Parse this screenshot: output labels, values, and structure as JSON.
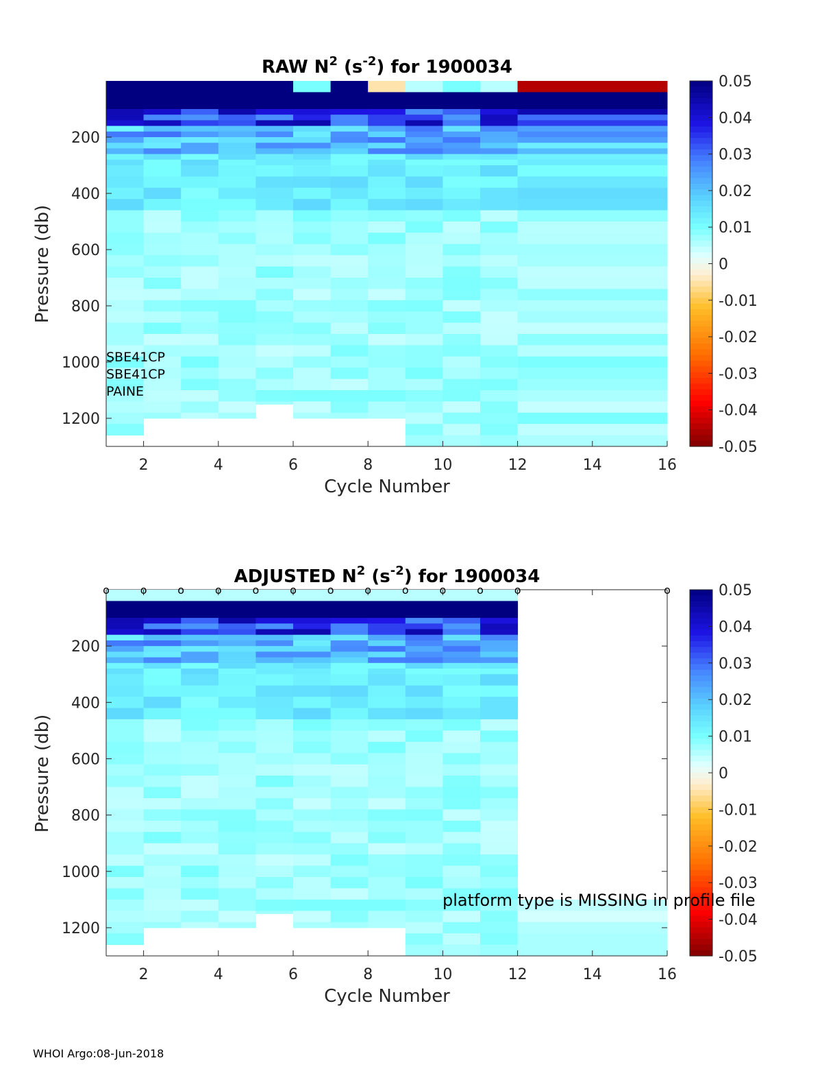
{
  "footer": "WHOI Argo:08-Jun-2018",
  "chart_data": [
    {
      "type": "heatmap",
      "title_main": "RAW N",
      "title_sup1": "2",
      "title_mid": " (s",
      "title_sup2": "-2",
      "title_end": ") for 1900034",
      "xlabel": "Cycle Number",
      "ylabel": "Pressure (db)",
      "xlim": [
        1,
        16
      ],
      "ylim": [
        1300,
        0
      ],
      "xticks": [
        "2",
        "4",
        "6",
        "8",
        "10",
        "12",
        "14",
        "16"
      ],
      "yticks": [
        "200",
        "400",
        "600",
        "800",
        "1000",
        "1200"
      ],
      "colorbar": {
        "range": [
          -0.05,
          0.05
        ],
        "ticks": [
          "0.05",
          "0.04",
          "0.03",
          "0.02",
          "0.01",
          "0",
          "-0.01",
          "-0.02",
          "-0.03",
          "-0.04",
          "-0.05"
        ]
      },
      "annotations": [
        "SBE41CP",
        "SBE41CP",
        "PAINE"
      ],
      "cycles": [
        1,
        2,
        3,
        4,
        5,
        6,
        7,
        8,
        9,
        10,
        11,
        12
      ],
      "max_pressure": [
        1260,
        1200,
        1200,
        1200,
        1150,
        1200,
        1200,
        1200,
        1300,
        1300,
        1300,
        1300
      ],
      "surface_value_by_cycle": [
        0.05,
        0.05,
        0.05,
        0.05,
        0.05,
        0.01,
        0.05,
        -0.005,
        0.005,
        0.01,
        0.005,
        -0.045
      ]
    },
    {
      "type": "heatmap",
      "title_main": "ADJUSTED N",
      "title_sup1": "2",
      "title_mid": " (s",
      "title_sup2": "-2",
      "title_end": ") for 1900034",
      "xlabel": "Cycle Number",
      "ylabel": "Pressure (db)",
      "xlim": [
        1,
        16
      ],
      "ylim": [
        1300,
        0
      ],
      "xticks": [
        "2",
        "4",
        "6",
        "8",
        "10",
        "12",
        "14",
        "16"
      ],
      "yticks": [
        "200",
        "400",
        "600",
        "800",
        "1000",
        "1200"
      ],
      "colorbar": {
        "range": [
          -0.05,
          0.05
        ],
        "ticks": [
          "0.05",
          "0.04",
          "0.03",
          "0.02",
          "0.01",
          "0",
          "-0.01",
          "-0.02",
          "-0.03",
          "-0.04",
          "-0.05"
        ]
      },
      "qc_marker": "o",
      "qc_marker_cycles": [
        1,
        2,
        3,
        4,
        5,
        6,
        7,
        8,
        9,
        10,
        11,
        12,
        16
      ],
      "annotation": "platform type is MISSING in profile file",
      "cycles": [
        1,
        2,
        3,
        4,
        5,
        6,
        7,
        8,
        9,
        10,
        11
      ],
      "extra_column_cycle": 12,
      "extra_column_pressure_range": [
        1100,
        1300
      ],
      "max_pressure": [
        1260,
        1200,
        1200,
        1200,
        1150,
        1200,
        1200,
        1200,
        1300,
        1300,
        1300
      ]
    }
  ]
}
